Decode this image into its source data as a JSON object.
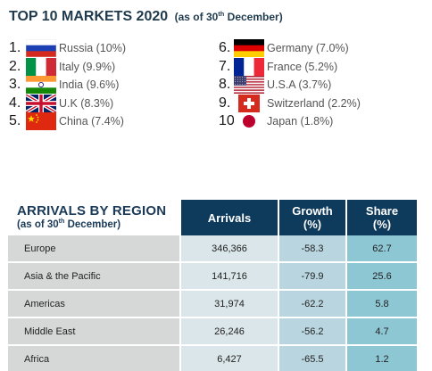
{
  "title": {
    "main": "TOP 10 MARKETS 2020",
    "sub_prefix": "(as of 30",
    "sub_sup": "th",
    "sub_suffix": " December)"
  },
  "markets": [
    {
      "rank": "1.",
      "label": "Russia (10%)",
      "flag": "russia"
    },
    {
      "rank": "2.",
      "label": "Italy (9.9%)",
      "flag": "italy"
    },
    {
      "rank": "3.",
      "label": "India (9.6%)",
      "flag": "india"
    },
    {
      "rank": "4.",
      "label": "U.K (8.3%)",
      "flag": "uk"
    },
    {
      "rank": "5.",
      "label": "China (7.4%)",
      "flag": "china"
    },
    {
      "rank": "6.",
      "label": "Germany (7.0%)",
      "flag": "germany"
    },
    {
      "rank": "7.",
      "label": "France (5.2%)",
      "flag": "france"
    },
    {
      "rank": "8.",
      "label": "U.S.A (3.7%)",
      "flag": "usa"
    },
    {
      "rank": "9.",
      "label": "Switzerland (2.2%)",
      "flag": "switzerland"
    },
    {
      "rank": "10.",
      "label": "Japan (1.8%)",
      "flag": "japan"
    }
  ],
  "region_table": {
    "heading": "ARRIVALS BY REGION",
    "subheading_prefix": "(as of 30",
    "subheading_sup": "th",
    "subheading_suffix": " December)",
    "columns": {
      "arrivals": "Arrivals",
      "growth_line1": "Growth",
      "growth_line2": "(%)",
      "share_line1": "Share",
      "share_line2": "(%)"
    },
    "rows": [
      {
        "region": "Europe",
        "arrivals": "346,366",
        "growth": "-58.3",
        "share": "62.7"
      },
      {
        "region": "Asia & the Pacific",
        "arrivals": "141,716",
        "growth": "-79.9",
        "share": "25.6"
      },
      {
        "region": "Americas",
        "arrivals": "31,974",
        "growth": "-62.2",
        "share": "5.8"
      },
      {
        "region": "Middle East",
        "arrivals": "26,246",
        "growth": "-56.2",
        "share": "4.7"
      },
      {
        "region": "Africa",
        "arrivals": "6,427",
        "growth": "-65.5",
        "share": "1.2"
      }
    ]
  },
  "colors": {
    "header_bg": "#0e3a5c",
    "title_text": "#1f3a4d"
  }
}
